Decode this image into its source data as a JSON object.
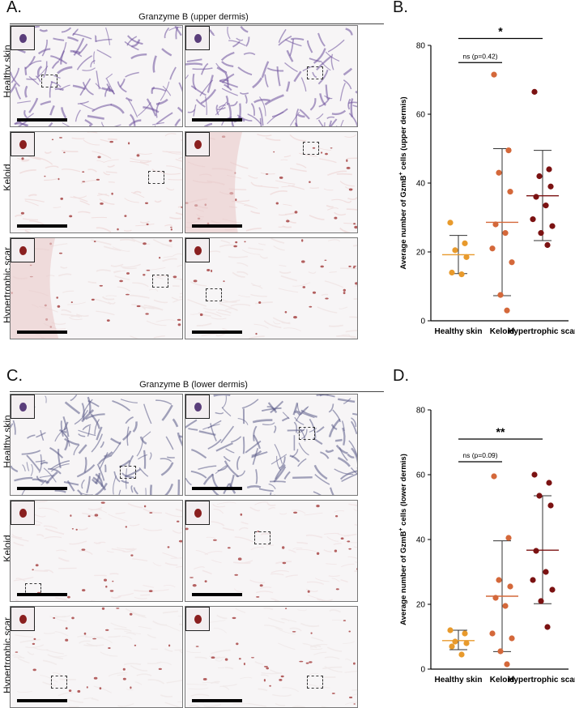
{
  "panel_letters": {
    "a": "A.",
    "b": "B.",
    "c": "C.",
    "d": "D."
  },
  "micrograph_grids": [
    {
      "title": "Granzyme B (upper dermis)",
      "row_labels": [
        "Healthy skin",
        "Keloid",
        "Hypertrophic scar"
      ],
      "tissue_colors": [
        "#cbc4dc",
        "#efdede",
        "#efe6e6"
      ],
      "stain_colors": [
        "#6b4f9a",
        "#a03a3a",
        "#a03a3a"
      ]
    },
    {
      "title": "Granzyme B (lower dermis)",
      "row_labels": [
        "Healthy skin",
        "Keloid",
        "Hypertrophic scar"
      ],
      "tissue_colors": [
        "#dcdbe6",
        "#f1e6e7",
        "#efeaea"
      ],
      "stain_colors": [
        "#5a5a86",
        "#a33c3c",
        "#a33c3c"
      ]
    }
  ],
  "chart_data": [
    {
      "type": "scatter",
      "ylabel_main": "Average number of GzmB",
      "ylabel_sup": "+",
      "ylabel_tail": " cells (upper dermis)",
      "ylim": [
        0,
        80
      ],
      "yticks": [
        "0",
        "20",
        "40",
        "60",
        "80"
      ],
      "categories": [
        "Healthy skin",
        "Keloid",
        "Hypertrophic scar"
      ],
      "colors": [
        "#e89a2c",
        "#d4683a",
        "#7b1212"
      ],
      "series": [
        {
          "values": [
            28.5,
            22.5,
            20.5,
            18.5,
            14,
            13.5
          ],
          "mean": 19.2,
          "sd_low": 13.7,
          "sd_high": 24.8
        },
        {
          "values": [
            71.5,
            49.5,
            43,
            37.5,
            28,
            25.5,
            21,
            17,
            7.5,
            3
          ],
          "mean": 28.6,
          "sd_low": 7.3,
          "sd_high": 50
        },
        {
          "values": [
            66.5,
            44,
            42,
            39,
            36,
            33.5,
            29.5,
            27.5,
            25.5,
            22
          ],
          "mean": 36.3,
          "sd_low": 23.3,
          "sd_high": 49.5
        }
      ],
      "annotations": [
        {
          "text": "*",
          "from": 0,
          "to": 2,
          "y": 82,
          "style": "star"
        },
        {
          "text": "ns (p=0.42)",
          "from": 0,
          "to": 1,
          "y": 75,
          "style": "ns"
        }
      ]
    },
    {
      "type": "scatter",
      "ylabel_main": "Average number of GzmB",
      "ylabel_sup": "+",
      "ylabel_tail": " cells (lower dermis)",
      "ylim": [
        0,
        80
      ],
      "yticks": [
        "0",
        "20",
        "40",
        "60",
        "80"
      ],
      "categories": [
        "Healthy skin",
        "Keloid",
        "Hypertrophic scar"
      ],
      "colors": [
        "#e89a2c",
        "#d4683a",
        "#7b1212"
      ],
      "series": [
        {
          "values": [
            12,
            11,
            8.5,
            8,
            7,
            4.5
          ],
          "mean": 8.8,
          "sd_low": 6,
          "sd_high": 12
        },
        {
          "values": [
            59.5,
            40.5,
            27.5,
            25.5,
            22,
            19.5,
            11,
            9.5,
            5.5,
            1.5
          ],
          "mean": 22.5,
          "sd_low": 5.4,
          "sd_high": 39.6
        },
        {
          "values": [
            60,
            57.5,
            53.5,
            50.5,
            36.5,
            30,
            27.5,
            24.5,
            21,
            13
          ],
          "mean": 36.7,
          "sd_low": 20.2,
          "sd_high": 53.5
        }
      ],
      "annotations": [
        {
          "text": "**",
          "from": 0,
          "to": 2,
          "y": 71,
          "style": "star"
        },
        {
          "text": "ns (p=0.09)",
          "from": 0,
          "to": 1,
          "y": 64,
          "style": "ns"
        }
      ]
    }
  ]
}
